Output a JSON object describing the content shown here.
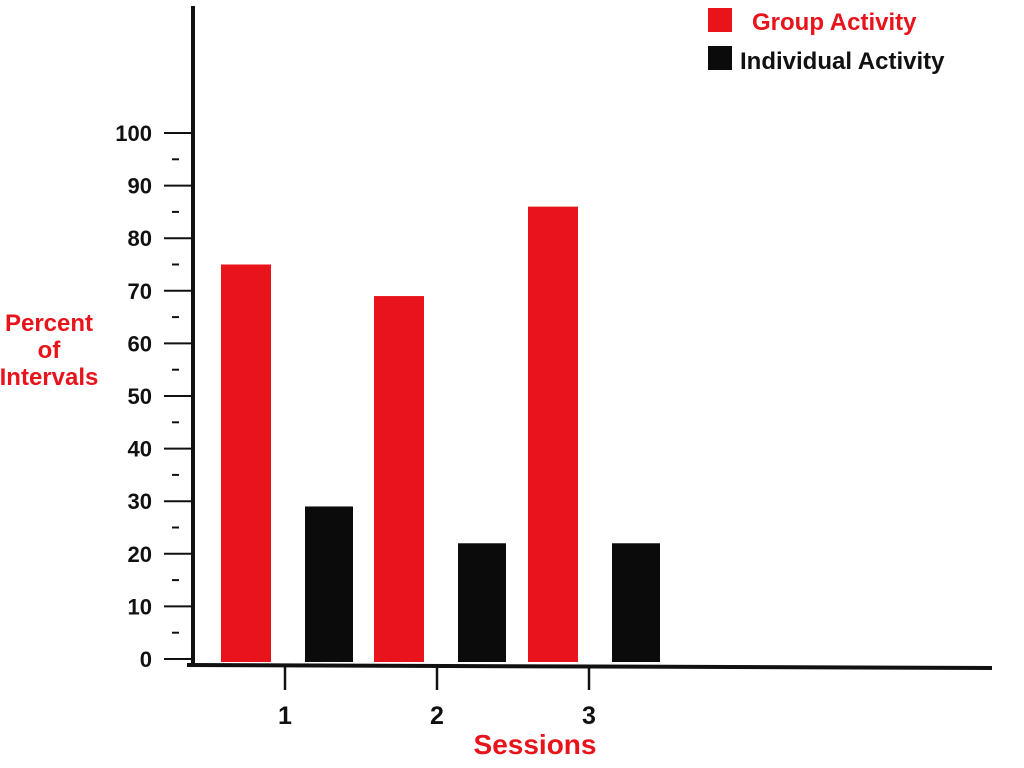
{
  "chart_data": {
    "type": "bar",
    "categories": [
      "1",
      "2",
      "3"
    ],
    "series": [
      {
        "name": "Group Activity",
        "values": [
          75,
          69,
          86
        ],
        "color": "#e8131b"
      },
      {
        "name": "Individual Activity",
        "values": [
          29,
          22,
          22
        ],
        "color": "#0b0b0b"
      }
    ],
    "title": "",
    "xlabel": "Sessions",
    "ylabel": [
      "Percent",
      "of",
      "Intervals"
    ],
    "ylim": [
      0,
      100
    ],
    "yticks": [
      "0",
      "10",
      "20",
      "30",
      "40",
      "50",
      "60",
      "70",
      "80",
      "90",
      "100"
    ],
    "minor_ticks": true,
    "grid": false,
    "legend_position": "top-right",
    "colors": {
      "axis": "#111111",
      "label": "#e8131b",
      "text": "#111111"
    }
  }
}
